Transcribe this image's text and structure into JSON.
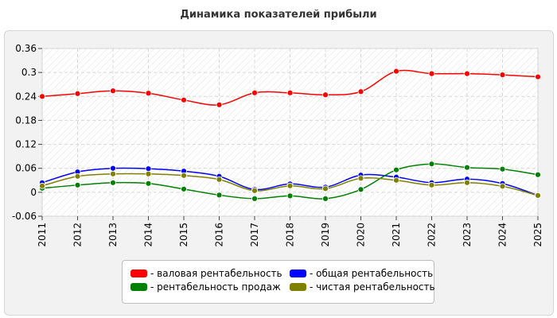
{
  "chart_data": {
    "type": "line",
    "title": "Динамика показателей прибыли",
    "xlabel": "",
    "ylabel": "",
    "x": [
      "2011",
      "2012",
      "2013",
      "2014",
      "2015",
      "2016",
      "2017",
      "2018",
      "2019",
      "2020",
      "2021",
      "2022",
      "2023",
      "2024",
      "2025"
    ],
    "ylim": [
      -0.06,
      0.36
    ],
    "yticks": [
      "0.36",
      "0.3",
      "0.24",
      "0.18",
      "0.12",
      "0.06",
      "0",
      "-0.06"
    ],
    "grid": true,
    "legend_position": "bottom",
    "series": [
      {
        "name": "- валовая рентабельность",
        "color": "#ff0000",
        "values": [
          0.24,
          0.247,
          0.254,
          0.248,
          0.231,
          0.219,
          0.249,
          0.249,
          0.244,
          0.252,
          0.303,
          0.297,
          0.297,
          0.294,
          0.289
        ]
      },
      {
        "name": "- общая рентабельность",
        "color": "#0000ff",
        "values": [
          0.024,
          0.051,
          0.06,
          0.059,
          0.053,
          0.04,
          0.007,
          0.021,
          0.013,
          0.043,
          0.038,
          0.024,
          0.033,
          0.022,
          -0.008
        ]
      },
      {
        "name": "- рентабельность продаж",
        "color": "#008000",
        "values": [
          0.01,
          0.018,
          0.024,
          0.022,
          0.008,
          -0.007,
          -0.016,
          -0.009,
          -0.016,
          0.007,
          0.056,
          0.071,
          0.062,
          0.058,
          0.044
        ]
      },
      {
        "name": "- чистая рентабельность",
        "color": "#808000",
        "values": [
          0.016,
          0.04,
          0.046,
          0.046,
          0.042,
          0.032,
          0.004,
          0.016,
          0.009,
          0.035,
          0.03,
          0.018,
          0.024,
          0.015,
          -0.008
        ]
      }
    ]
  }
}
